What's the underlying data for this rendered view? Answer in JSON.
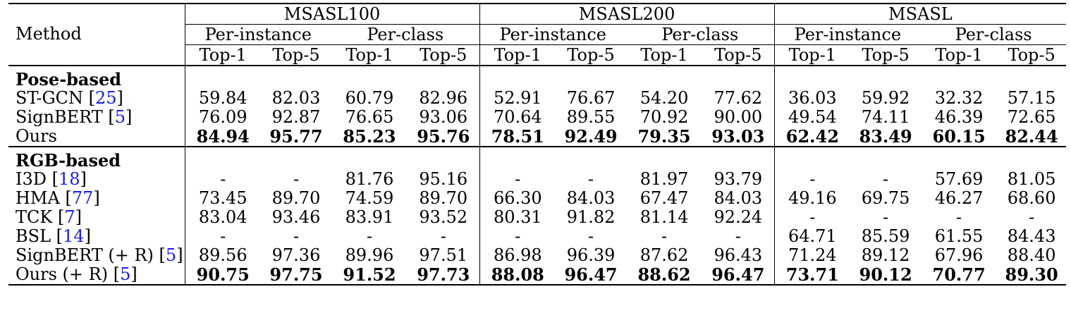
{
  "header": {
    "method_label": "Method",
    "datasets": [
      "MSASL100",
      "MSASL200",
      "MSASL"
    ],
    "metric_groups": [
      "Per-instance",
      "Per-class"
    ],
    "metrics": [
      "Top-1",
      "Top-5"
    ]
  },
  "sections": [
    {
      "title": "Pose-based",
      "rows": [
        {
          "method": "ST-GCN",
          "cite": "25",
          "suffix": "",
          "bold": false,
          "values": [
            "59.84",
            "82.03",
            "60.79",
            "82.96",
            "52.91",
            "76.67",
            "54.20",
            "77.62",
            "36.03",
            "59.92",
            "32.32",
            "57.15"
          ]
        },
        {
          "method": "SignBERT",
          "cite": "5",
          "suffix": "",
          "bold": false,
          "values": [
            "76.09",
            "92.87",
            "76.65",
            "93.06",
            "70.64",
            "89.55",
            "70.92",
            "90.00",
            "49.54",
            "74.11",
            "46.39",
            "72.65"
          ]
        },
        {
          "method": "Ours",
          "cite": "",
          "suffix": "",
          "bold": true,
          "values": [
            "84.94",
            "95.77",
            "85.23",
            "95.76",
            "78.51",
            "92.49",
            "79.35",
            "93.03",
            "62.42",
            "83.49",
            "60.15",
            "82.44"
          ]
        }
      ]
    },
    {
      "title": "RGB-based",
      "rows": [
        {
          "method": "I3D",
          "cite": "18",
          "suffix": "",
          "bold": false,
          "values": [
            "-",
            "-",
            "81.76",
            "95.16",
            "-",
            "-",
            "81.97",
            "93.79",
            "-",
            "-",
            "57.69",
            "81.05"
          ]
        },
        {
          "method": "HMA",
          "cite": "77",
          "suffix": "",
          "bold": false,
          "values": [
            "73.45",
            "89.70",
            "74.59",
            "89.70",
            "66.30",
            "84.03",
            "67.47",
            "84.03",
            "49.16",
            "69.75",
            "46.27",
            "68.60"
          ]
        },
        {
          "method": "TCK",
          "cite": "7",
          "suffix": "",
          "bold": false,
          "values": [
            "83.04",
            "93.46",
            "83.91",
            "93.52",
            "80.31",
            "91.82",
            "81.14",
            "92.24",
            "-",
            "-",
            "-",
            "-"
          ]
        },
        {
          "method": "BSL",
          "cite": "14",
          "suffix": "",
          "bold": false,
          "values": [
            "-",
            "-",
            "-",
            "-",
            "-",
            "-",
            "-",
            "-",
            "64.71",
            "85.59",
            "61.55",
            "84.43"
          ]
        },
        {
          "method": "SignBERT (+ R)",
          "cite": "5",
          "suffix": "",
          "bold": false,
          "values": [
            "89.56",
            "97.36",
            "89.96",
            "97.51",
            "86.98",
            "96.39",
            "87.62",
            "96.43",
            "71.24",
            "89.12",
            "67.96",
            "88.40"
          ]
        },
        {
          "method": "Ours (+ R)",
          "cite": "5",
          "suffix": "",
          "bold": true,
          "values": [
            "90.75",
            "97.75",
            "91.52",
            "97.73",
            "88.08",
            "96.47",
            "88.62",
            "96.47",
            "73.71",
            "90.12",
            "70.77",
            "89.30"
          ]
        }
      ]
    }
  ],
  "colors": {
    "citation": "#1a1aff",
    "text": "#000000"
  }
}
